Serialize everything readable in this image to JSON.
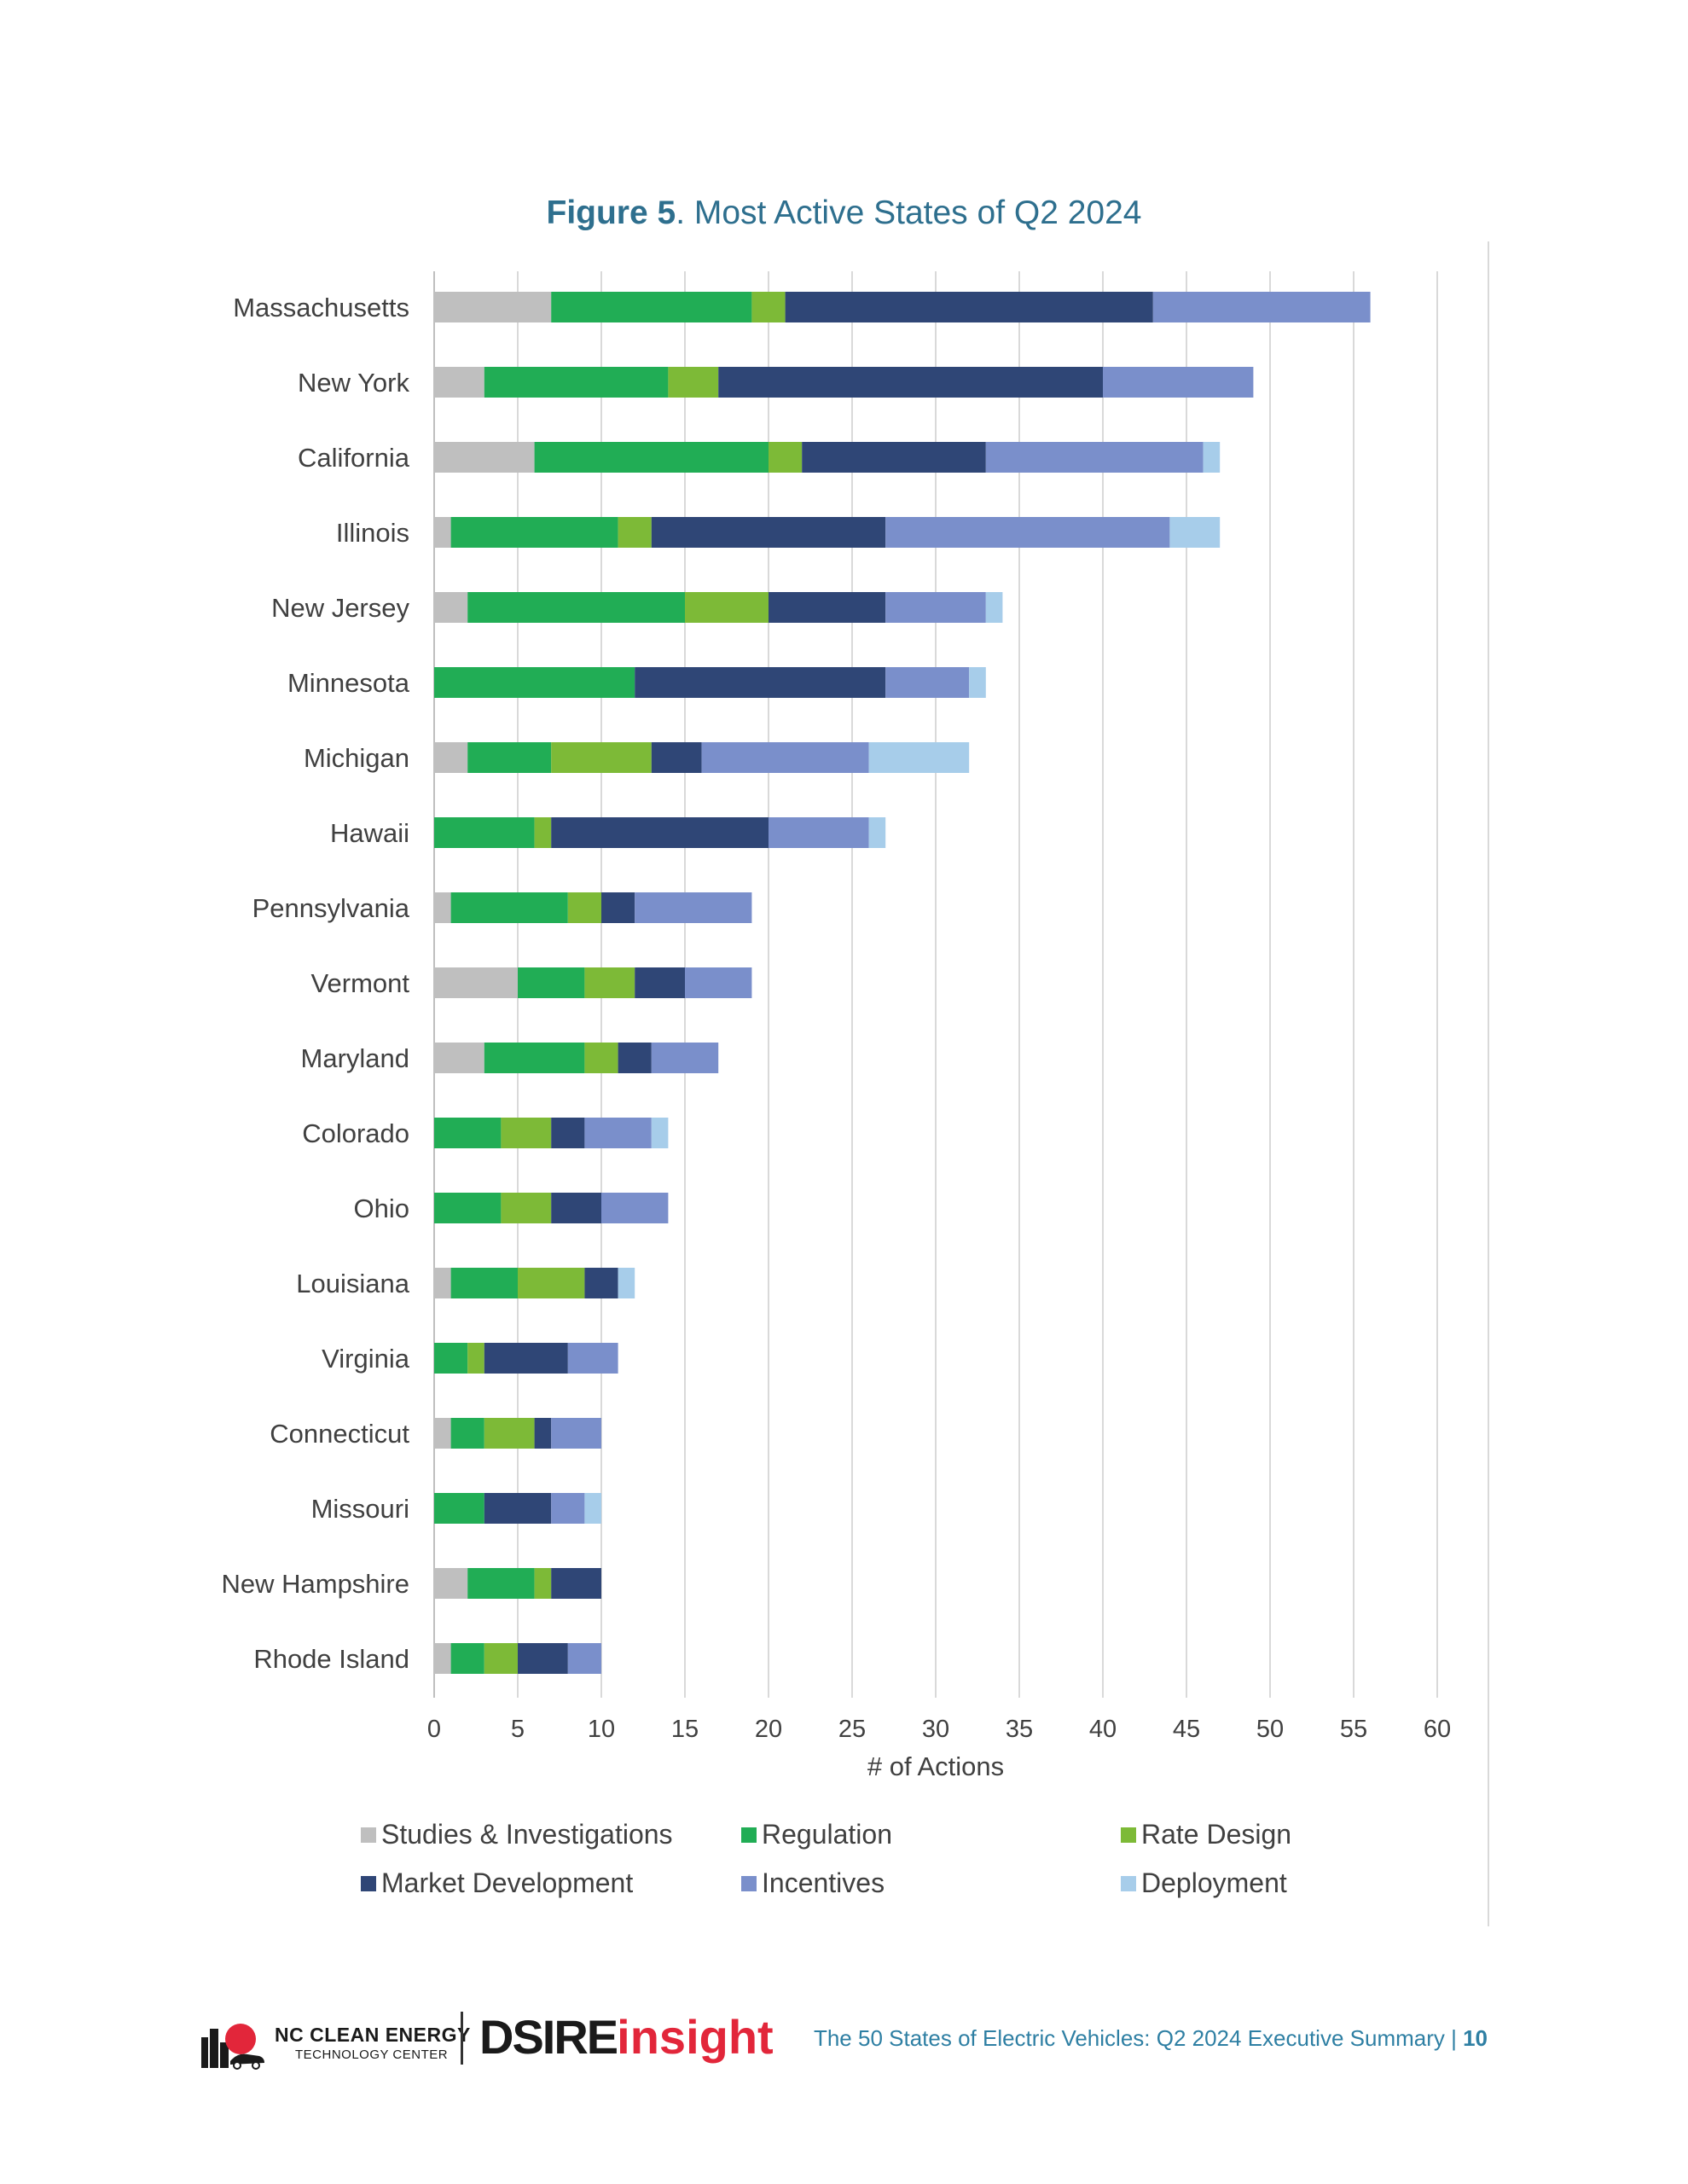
{
  "figure": {
    "label": "Figure 5",
    "title": ". Most Active States of Q2 2024"
  },
  "colors": {
    "title": "#2e6f8e",
    "footer": "#2e7fa3",
    "dsire_accent": "#e2263a"
  },
  "chart_data": {
    "type": "bar",
    "orientation": "horizontal",
    "stacked": true,
    "categories": [
      "Massachusetts",
      "New York",
      "California",
      "Illinois",
      "New Jersey",
      "Minnesota",
      "Michigan",
      "Hawaii",
      "Pennsylvania",
      "Vermont",
      "Maryland",
      "Colorado",
      "Ohio",
      "Louisiana",
      "Virginia",
      "Connecticut",
      "Missouri",
      "New Hampshire",
      "Rhode Island"
    ],
    "series": [
      {
        "name": "Studies & Investigations",
        "color": "#bfbfbf",
        "values": [
          7,
          3,
          6,
          1,
          2,
          0,
          2,
          0,
          1,
          5,
          3,
          0,
          0,
          1,
          0,
          1,
          0,
          2,
          1
        ]
      },
      {
        "name": "Regulation",
        "color": "#21ad55",
        "values": [
          12,
          11,
          14,
          10,
          13,
          12,
          5,
          6,
          7,
          4,
          6,
          4,
          4,
          4,
          2,
          2,
          3,
          4,
          2
        ]
      },
      {
        "name": "Rate Design",
        "color": "#7dba37",
        "values": [
          2,
          3,
          2,
          2,
          5,
          0,
          6,
          1,
          2,
          3,
          2,
          3,
          3,
          4,
          1,
          3,
          0,
          1,
          2
        ]
      },
      {
        "name": "Market Development",
        "color": "#2f4676",
        "values": [
          22,
          23,
          11,
          14,
          7,
          15,
          3,
          13,
          2,
          3,
          2,
          2,
          3,
          2,
          5,
          1,
          4,
          3,
          3
        ]
      },
      {
        "name": "Incentives",
        "color": "#7a8fcb",
        "values": [
          13,
          9,
          13,
          17,
          6,
          5,
          10,
          6,
          7,
          4,
          4,
          4,
          4,
          0,
          3,
          3,
          2,
          0,
          2
        ]
      },
      {
        "name": "Deployment",
        "color": "#a7cdea",
        "values": [
          0,
          0,
          1,
          3,
          1,
          1,
          6,
          1,
          0,
          0,
          0,
          1,
          0,
          1,
          0,
          0,
          1,
          0,
          0
        ]
      }
    ],
    "xticks": [
      "0",
      "5",
      "10",
      "15",
      "20",
      "25",
      "30",
      "35",
      "40",
      "45",
      "50",
      "55",
      "60"
    ],
    "xlim": [
      0,
      60
    ],
    "xlabel": "# of Actions",
    "grid": true,
    "legend_position": "bottom"
  },
  "footer": {
    "nc_line1": "NC CLEAN ENERGY",
    "nc_line2": "TECHNOLOGY CENTER",
    "dsire_a": "DSIRE",
    "dsire_b": "insight",
    "summary_text": "The 50 States of Electric Vehicles: Q2 2024 Executive Summary | ",
    "page_number": "10"
  }
}
